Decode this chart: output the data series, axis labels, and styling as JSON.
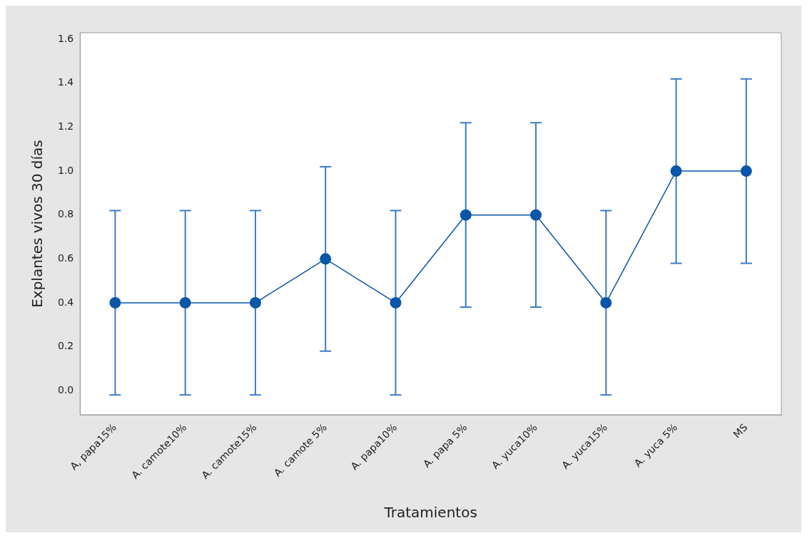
{
  "chart_data": {
    "type": "line",
    "xlabel": "Tratamientos",
    "ylabel": "Explantes vivos 30 días",
    "categories": [
      "A, papa15%",
      "A. camote10%",
      "A. camote15%",
      "A. camote 5%",
      "A. papa10%",
      "A. papa 5%",
      "A. yuca10%",
      "A. yuca15%",
      "A. yuca 5%",
      "MS"
    ],
    "series": [
      {
        "color": "#0a56a8",
        "values": [
          0.4,
          0.4,
          0.4,
          0.6,
          0.4,
          0.8,
          0.8,
          0.4,
          1.0,
          1.0
        ],
        "errors": [
          0.42,
          0.42,
          0.42,
          0.42,
          0.42,
          0.42,
          0.42,
          0.42,
          0.42,
          0.42
        ]
      }
    ],
    "ylim": [
      -0.11,
      1.63
    ],
    "yticks": [
      {
        "value": 0,
        "label": "0.0"
      },
      0.2,
      0.4,
      0.6,
      0.8,
      {
        "value": 1,
        "label": "1.0"
      },
      1.2,
      1.4,
      1.6
    ],
    "grid": false,
    "legend": false,
    "marker": "circle",
    "line_style": "solid"
  }
}
